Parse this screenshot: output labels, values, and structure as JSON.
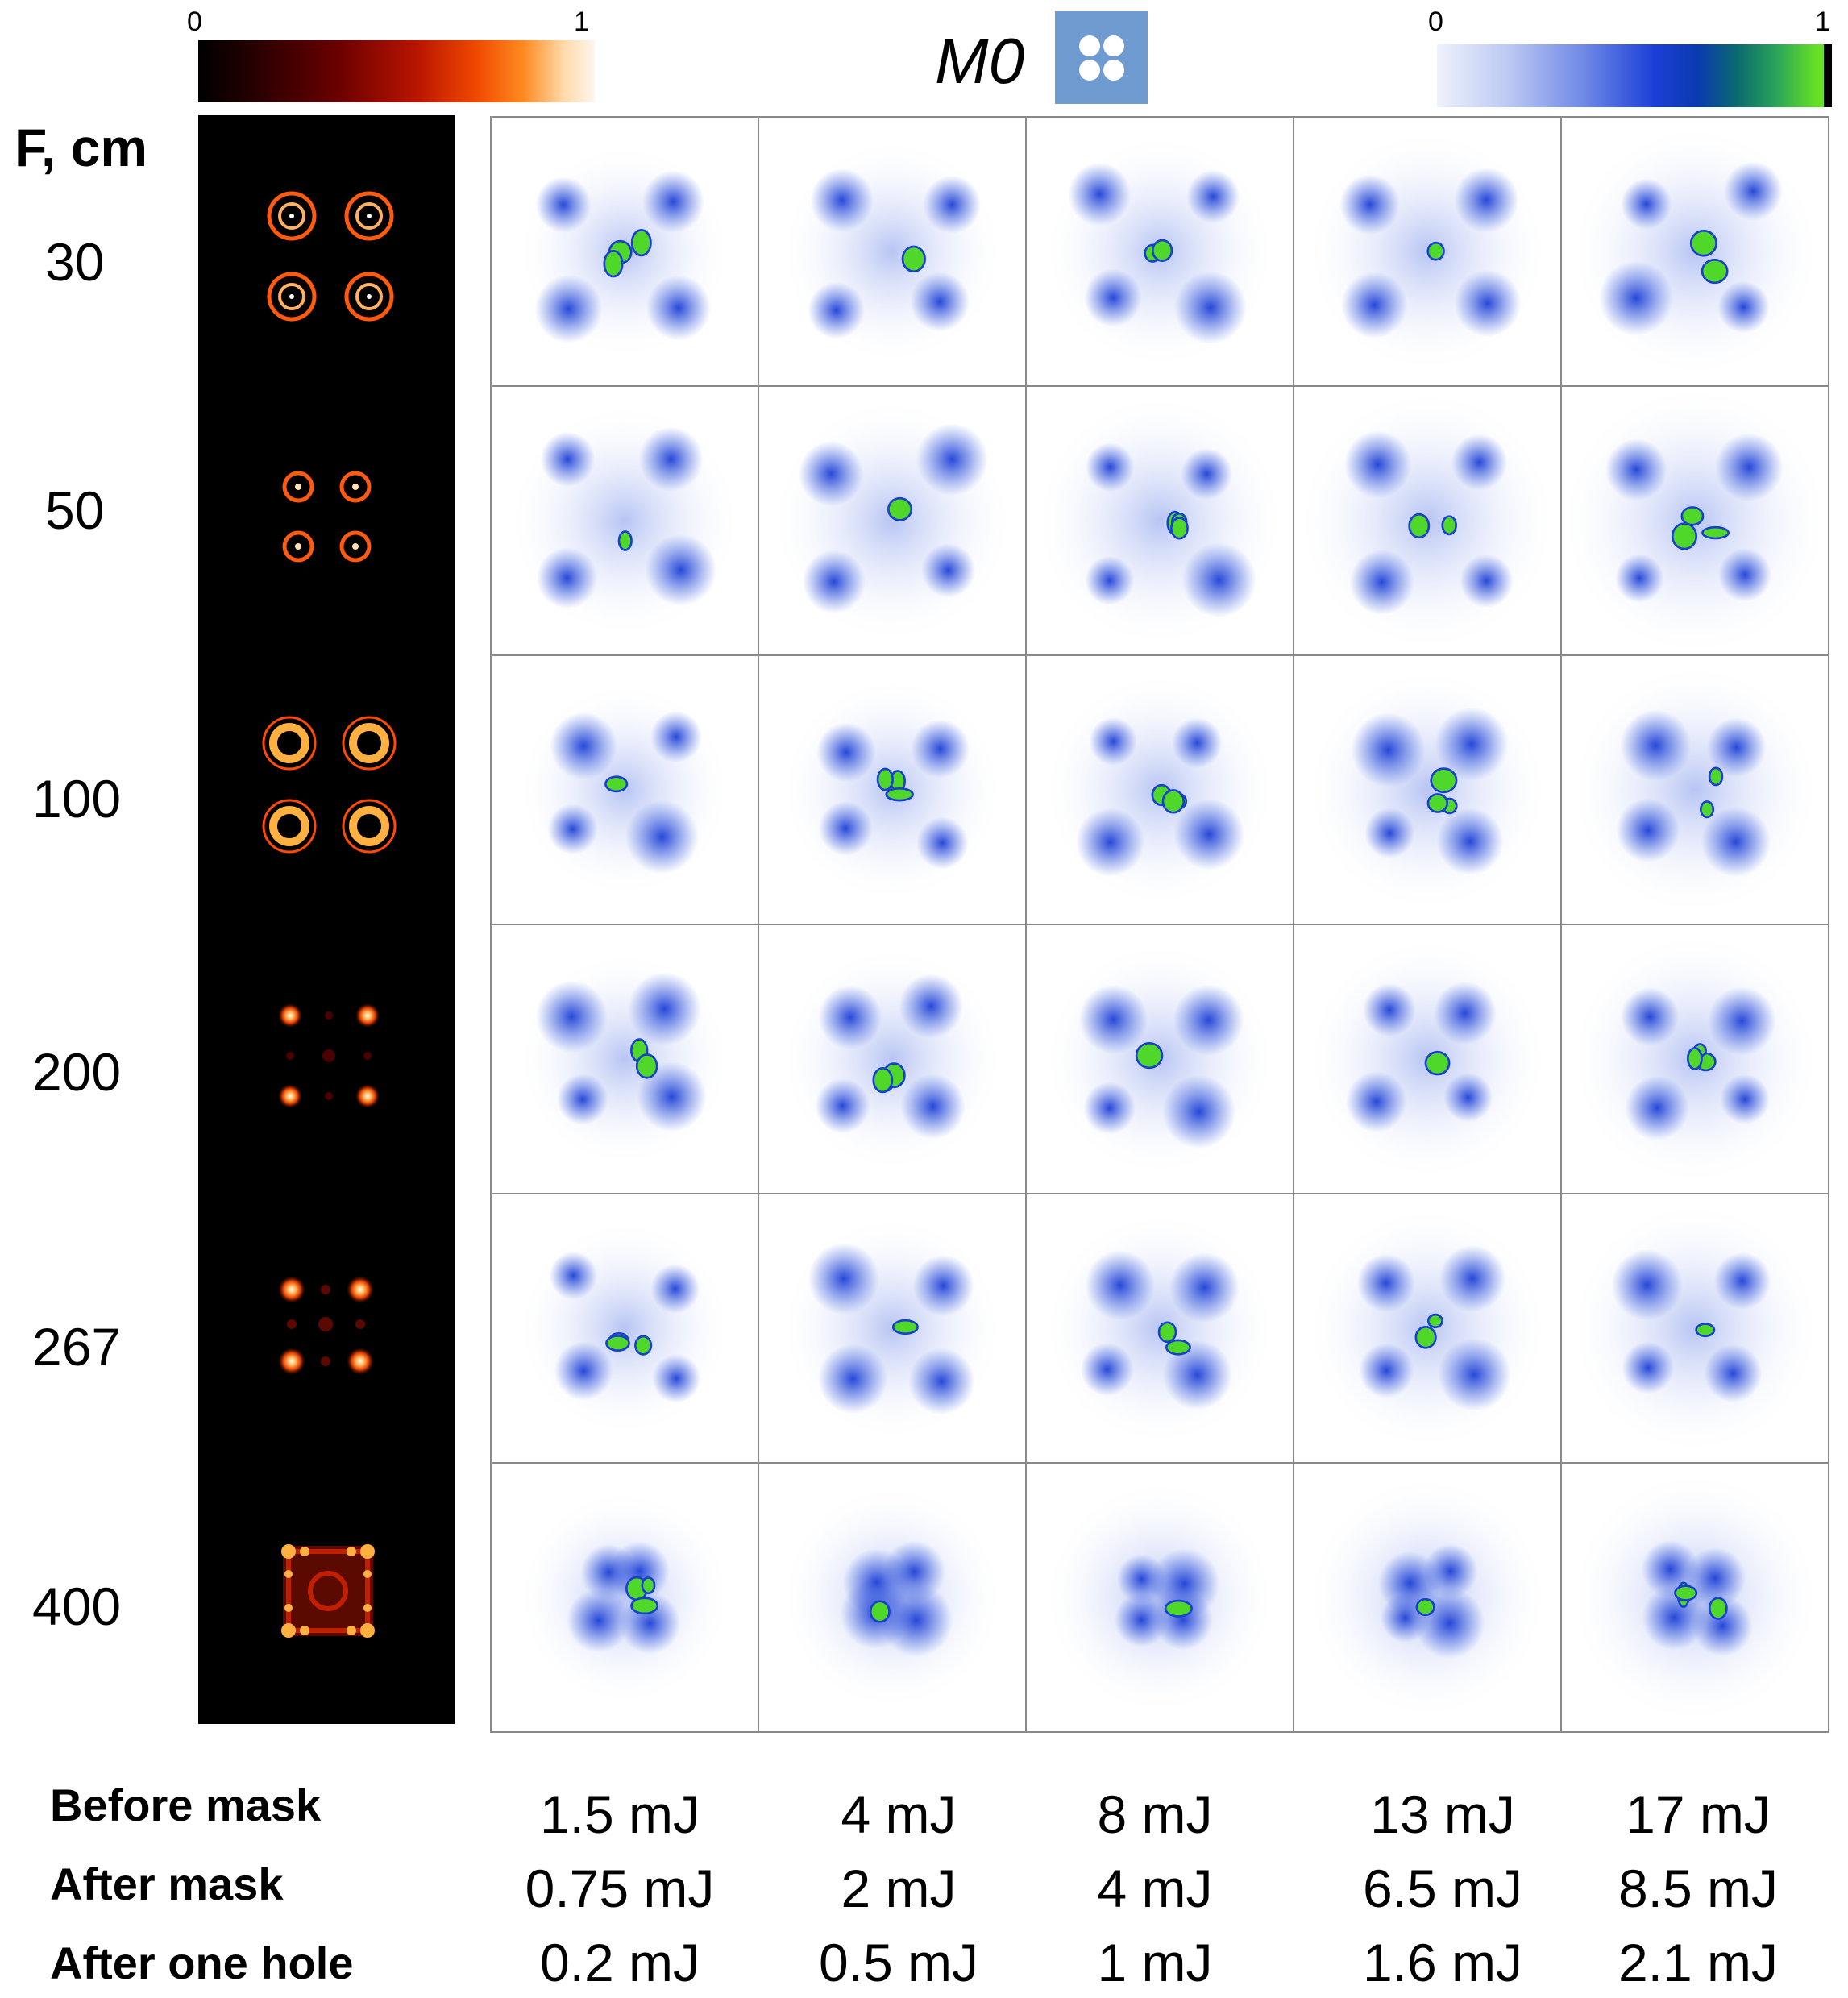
{
  "colorbars": {
    "hot": {
      "min_label": "0",
      "max_label": "1"
    },
    "blue_green": {
      "min_label": "0",
      "max_label": "1"
    }
  },
  "title": "M0",
  "mask_icon": "four-hole-mask-icon",
  "row_header": "F, cm",
  "rows": [
    "30",
    "50",
    "100",
    "200",
    "267",
    "400"
  ],
  "columns": [
    "1.5 mJ",
    "4 mJ",
    "8 mJ",
    "13 mJ",
    "17 mJ"
  ],
  "bottom_labels": {
    "before": "Before mask",
    "after": "After mask",
    "hole": "After one hole"
  },
  "energies": {
    "before": [
      "1.5 mJ",
      "4 mJ",
      "8 mJ",
      "13 mJ",
      "17 mJ"
    ],
    "after": [
      "0.75 mJ",
      "2 mJ",
      "4 mJ",
      "6.5 mJ",
      "8.5 mJ"
    ],
    "hole": [
      "0.2 mJ",
      "0.5 mJ",
      "1 mJ",
      "1.6 mJ",
      "2.1 mJ"
    ]
  },
  "colors": {
    "hot_low": "#000000",
    "hot_high": "#fff6ee",
    "blue_low": "#eef2fd",
    "blue_mid": "#1b3fd8",
    "blue_high": "#66e024",
    "mask_icon_bg": "#6f9bd0"
  }
}
